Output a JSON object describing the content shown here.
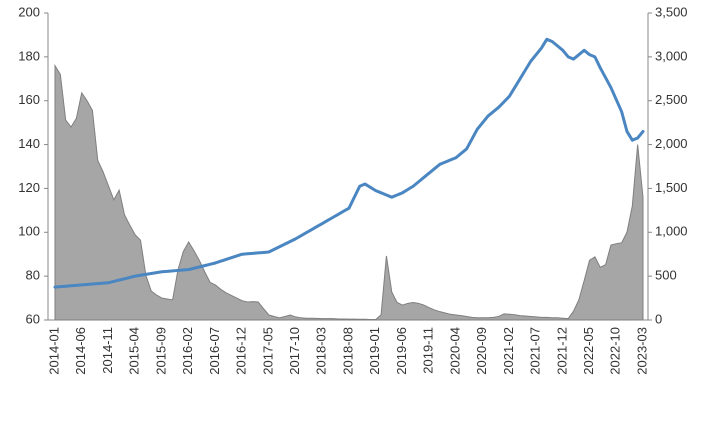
{
  "chart_data": {
    "type": "combo",
    "categories": [
      "2014-01",
      null,
      null,
      null,
      null,
      "2014-06",
      null,
      null,
      null,
      null,
      "2014-11",
      null,
      null,
      null,
      null,
      "2015-04",
      null,
      null,
      null,
      null,
      "2015-09",
      null,
      null,
      null,
      null,
      "2016-02",
      null,
      null,
      null,
      null,
      "2016-07",
      null,
      null,
      null,
      null,
      "2016-12",
      null,
      null,
      null,
      null,
      "2017-05",
      null,
      null,
      null,
      null,
      "2017-10",
      null,
      null,
      null,
      null,
      "2018-03",
      null,
      null,
      null,
      null,
      "2018-08",
      null,
      null,
      null,
      null,
      "2019-01",
      null,
      null,
      null,
      null,
      "2019-06",
      null,
      null,
      null,
      null,
      "2019-11",
      null,
      null,
      null,
      null,
      "2020-04",
      null,
      null,
      null,
      null,
      "2020-09",
      null,
      null,
      null,
      null,
      "2021-02",
      null,
      null,
      null,
      null,
      "2021-07",
      null,
      null,
      null,
      null,
      "2021-12",
      null,
      null,
      null,
      null,
      "2022-05",
      null,
      null,
      null,
      null,
      "2022-10",
      null,
      null,
      null,
      null,
      "2023-03"
    ],
    "series": [
      {
        "type": "area",
        "axis": "y2",
        "color": "#a6a6a6",
        "values": [
          2900,
          2800,
          2280,
          2200,
          2300,
          2590,
          2500,
          2390,
          1820,
          1690,
          1530,
          1370,
          1480,
          1200,
          1080,
          970,
          910,
          510,
          330,
          285,
          250,
          240,
          230,
          570,
          780,
          890,
          790,
          680,
          550,
          430,
          400,
          350,
          310,
          280,
          250,
          220,
          205,
          210,
          205,
          130,
          57,
          40,
          25,
          40,
          57,
          35,
          25,
          20,
          20,
          18,
          15,
          15,
          15,
          12,
          12,
          10,
          10,
          8,
          8,
          6,
          5,
          60,
          730,
          320,
          200,
          170,
          190,
          200,
          190,
          170,
          140,
          115,
          95,
          80,
          65,
          57,
          50,
          40,
          30,
          25,
          25,
          25,
          30,
          40,
          70,
          65,
          60,
          50,
          45,
          40,
          35,
          30,
          30,
          25,
          25,
          20,
          15,
          100,
          230,
          450,
          680,
          720,
          600,
          630,
          855,
          870,
          880,
          1000,
          1300,
          2000,
          1400
        ]
      },
      {
        "type": "line",
        "axis": "y",
        "color": "#4a86c1",
        "values": [
          75,
          75.2,
          75.4,
          75.6,
          75.8,
          76,
          76.2,
          76.4,
          76.6,
          76.8,
          77,
          77.6,
          78.2,
          78.8,
          79.4,
          80,
          80.4,
          80.8,
          81.2,
          81.6,
          82,
          82.2,
          82.4,
          82.6,
          82.8,
          83,
          83.6,
          84.2,
          84.8,
          85.4,
          86,
          86.8,
          87.6,
          88.4,
          89.2,
          90,
          90.2,
          90.4,
          90.6,
          90.8,
          91,
          92.2,
          93.4,
          94.6,
          95.8,
          97,
          98.4,
          99.8,
          101.2,
          102.6,
          104,
          105.4,
          106.8,
          108.2,
          109.6,
          111,
          116,
          121,
          122,
          120.5,
          119,
          118,
          117,
          116,
          117,
          118,
          119.5,
          121,
          123,
          125,
          127,
          129,
          131,
          132,
          133,
          134,
          136,
          138,
          142.5,
          147,
          150,
          153,
          155,
          157,
          159.5,
          162,
          166,
          170,
          174,
          178,
          181,
          184,
          188,
          187,
          185,
          183,
          180,
          179,
          181,
          183,
          181,
          180,
          175,
          170.5,
          166,
          160.5,
          155,
          146,
          142,
          143,
          146
        ]
      }
    ],
    "ylim": [
      60,
      200
    ],
    "yticks": [
      60,
      80,
      100,
      120,
      140,
      160,
      180,
      200
    ],
    "y2lim": [
      0,
      3500
    ],
    "y2ticks": [
      0,
      500,
      {
        "value": 1000,
        "label": "1,000"
      },
      {
        "value": 1500,
        "label": "1,500"
      },
      {
        "value": 2000,
        "label": "2,000"
      },
      {
        "value": 2500,
        "label": "2,500"
      },
      {
        "value": 3000,
        "label": "3,000"
      },
      {
        "value": 3500,
        "label": "3,500"
      }
    ]
  }
}
